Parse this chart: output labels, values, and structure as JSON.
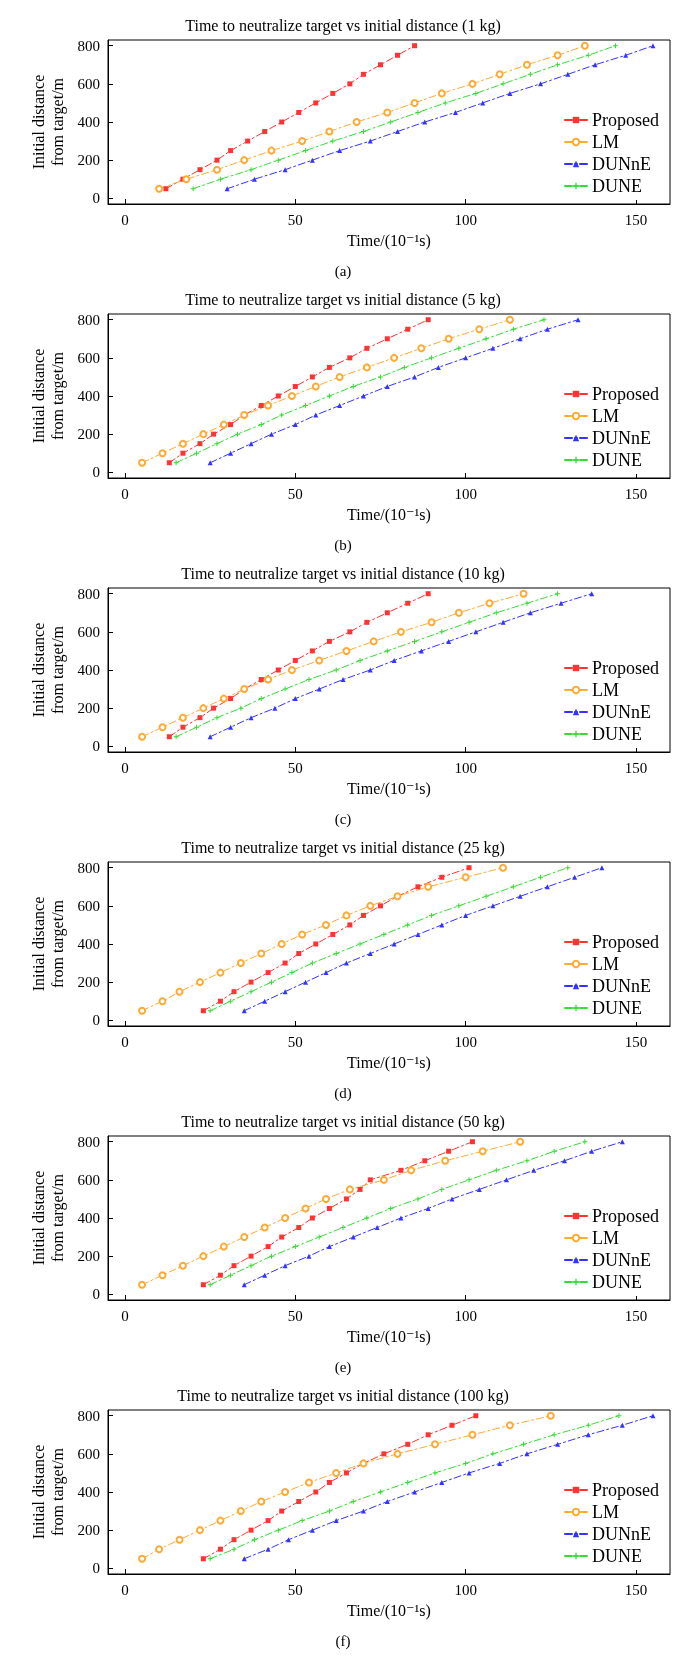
{
  "chart_data": [
    {
      "type": "line",
      "title": "Time to neutralize target vs initial distance (1 kg)",
      "xlabel": "Time/(10⁻¹s)",
      "ylabel": "Initial distance\nfrom target/m",
      "annotations": [
        "(a)"
      ],
      "xlim": [
        -5,
        160
      ],
      "xticks": [
        0,
        50,
        100,
        150
      ],
      "ylim": [
        -30,
        830
      ],
      "yticks": [
        0,
        200,
        400,
        600,
        800
      ],
      "grid": false,
      "legend": "bottom right",
      "line_style": "dashed",
      "series": [
        {
          "name": "Proposed",
          "color": "#ff3333",
          "marker": "square",
          "x": [
            12,
            17,
            22,
            27,
            31,
            36,
            41,
            46,
            51,
            56,
            61,
            66,
            70,
            75,
            80,
            85
          ],
          "values": [
            50,
            100,
            150,
            200,
            250,
            300,
            350,
            400,
            450,
            500,
            550,
            600,
            650,
            700,
            750,
            800
          ]
        },
        {
          "name": "LM",
          "color": "#ffaa33",
          "marker": "circle",
          "x": [
            10,
            18,
            27,
            35,
            43,
            52,
            60,
            68,
            77,
            85,
            93,
            102,
            110,
            118,
            127,
            135
          ],
          "values": [
            50,
            100,
            150,
            200,
            250,
            300,
            350,
            400,
            450,
            500,
            550,
            600,
            650,
            700,
            750,
            800
          ]
        },
        {
          "name": "DUNnE",
          "color": "#3333ff",
          "marker": "triangle",
          "x": [
            30,
            38,
            47,
            55,
            63,
            72,
            80,
            88,
            97,
            105,
            113,
            122,
            130,
            138,
            147,
            155
          ],
          "values": [
            50,
            100,
            150,
            200,
            250,
            300,
            350,
            400,
            450,
            500,
            550,
            600,
            650,
            700,
            750,
            800
          ]
        },
        {
          "name": "DUNE",
          "color": "#33dd33",
          "marker": "cross",
          "x": [
            20,
            28,
            37,
            45,
            53,
            61,
            70,
            78,
            86,
            94,
            103,
            111,
            119,
            127,
            136,
            144
          ],
          "values": [
            50,
            100,
            150,
            200,
            250,
            300,
            350,
            400,
            450,
            500,
            550,
            600,
            650,
            700,
            750,
            800
          ]
        }
      ]
    },
    {
      "type": "line",
      "title": "Time to neutralize target vs initial distance (5 kg)",
      "xlabel": "Time/(10⁻¹s)",
      "ylabel": "Initial distance\nfrom target/m",
      "annotations": [
        "(b)"
      ],
      "xlim": [
        -5,
        160
      ],
      "xticks": [
        0,
        50,
        100,
        150
      ],
      "ylim": [
        -30,
        830
      ],
      "yticks": [
        0,
        200,
        400,
        600,
        800
      ],
      "grid": false,
      "legend": "bottom right",
      "line_style": "dashed",
      "series": [
        {
          "name": "Proposed",
          "color": "#ff3333",
          "marker": "square",
          "x": [
            13,
            17,
            22,
            26,
            31,
            35,
            40,
            45,
            50,
            55,
            60,
            66,
            71,
            77,
            83,
            89
          ],
          "values": [
            50,
            100,
            150,
            200,
            250,
            300,
            350,
            400,
            450,
            500,
            550,
            600,
            650,
            700,
            750,
            800
          ]
        },
        {
          "name": "LM",
          "color": "#ffaa33",
          "marker": "circle",
          "x": [
            5,
            11,
            17,
            23,
            29,
            35,
            42,
            49,
            56,
            63,
            71,
            79,
            87,
            95,
            104,
            113
          ],
          "values": [
            50,
            100,
            150,
            200,
            250,
            300,
            350,
            400,
            450,
            500,
            550,
            600,
            650,
            700,
            750,
            800
          ]
        },
        {
          "name": "DUNnE",
          "color": "#3333ff",
          "marker": "triangle",
          "x": [
            25,
            31,
            37,
            43,
            50,
            56,
            63,
            70,
            77,
            85,
            92,
            100,
            108,
            116,
            124,
            133
          ],
          "values": [
            50,
            100,
            150,
            200,
            250,
            300,
            350,
            400,
            450,
            500,
            550,
            600,
            650,
            700,
            750,
            800
          ]
        },
        {
          "name": "DUNE",
          "color": "#33dd33",
          "marker": "cross",
          "x": [
            15,
            21,
            27,
            33,
            40,
            46,
            53,
            60,
            67,
            75,
            82,
            90,
            98,
            106,
            114,
            123
          ],
          "values": [
            50,
            100,
            150,
            200,
            250,
            300,
            350,
            400,
            450,
            500,
            550,
            600,
            650,
            700,
            750,
            800
          ]
        }
      ]
    },
    {
      "type": "line",
      "title": "Time to neutralize target vs initial distance (10 kg)",
      "xlabel": "Time/(10⁻¹s)",
      "ylabel": "Initial distance\nfrom target/m",
      "annotations": [
        "(c)"
      ],
      "xlim": [
        -5,
        160
      ],
      "xticks": [
        0,
        50,
        100,
        150
      ],
      "ylim": [
        -30,
        830
      ],
      "yticks": [
        0,
        200,
        400,
        600,
        800
      ],
      "grid": false,
      "legend": "bottom right",
      "line_style": "dashed",
      "series": [
        {
          "name": "Proposed",
          "color": "#ff3333",
          "marker": "square",
          "x": [
            13,
            17,
            22,
            26,
            31,
            35,
            40,
            45,
            50,
            55,
            60,
            66,
            71,
            77,
            83,
            89
          ],
          "values": [
            50,
            100,
            150,
            200,
            250,
            300,
            350,
            400,
            450,
            500,
            550,
            600,
            650,
            700,
            750,
            800
          ]
        },
        {
          "name": "LM",
          "color": "#ffaa33",
          "marker": "circle",
          "x": [
            5,
            11,
            17,
            23,
            29,
            35,
            42,
            49,
            57,
            65,
            73,
            81,
            90,
            98,
            107,
            117
          ],
          "values": [
            50,
            100,
            150,
            200,
            250,
            300,
            350,
            400,
            450,
            500,
            550,
            600,
            650,
            700,
            750,
            800
          ]
        },
        {
          "name": "DUNnE",
          "color": "#3333ff",
          "marker": "triangle",
          "x": [
            25,
            31,
            37,
            44,
            50,
            57,
            64,
            72,
            79,
            87,
            95,
            103,
            111,
            119,
            128,
            137
          ],
          "values": [
            50,
            100,
            150,
            200,
            250,
            300,
            350,
            400,
            450,
            500,
            550,
            600,
            650,
            700,
            750,
            800
          ]
        },
        {
          "name": "DUNE",
          "color": "#33dd33",
          "marker": "cross",
          "x": [
            15,
            21,
            27,
            34,
            40,
            47,
            54,
            62,
            69,
            77,
            85,
            93,
            101,
            109,
            118,
            127
          ],
          "values": [
            50,
            100,
            150,
            200,
            250,
            300,
            350,
            400,
            450,
            500,
            550,
            600,
            650,
            700,
            750,
            800
          ]
        }
      ]
    },
    {
      "type": "line",
      "title": "Time to neutralize target vs initial distance (25 kg)",
      "xlabel": "Time/(10⁻¹s)",
      "ylabel": "Initial distance\nfrom target/m",
      "annotations": [
        "(d)"
      ],
      "xlim": [
        -5,
        160
      ],
      "xticks": [
        0,
        50,
        100,
        150
      ],
      "ylim": [
        -30,
        830
      ],
      "yticks": [
        0,
        200,
        400,
        600,
        800
      ],
      "grid": false,
      "legend": "bottom right",
      "line_style": "dashed",
      "series": [
        {
          "name": "Proposed",
          "color": "#ff3333",
          "marker": "square",
          "x": [
            23,
            28,
            32,
            37,
            42,
            47,
            51,
            56,
            61,
            66,
            70,
            75,
            80,
            86,
            93,
            101
          ],
          "values": [
            50,
            100,
            150,
            200,
            250,
            300,
            350,
            400,
            450,
            500,
            550,
            600,
            650,
            700,
            750,
            800
          ]
        },
        {
          "name": "LM",
          "color": "#ffaa33",
          "marker": "circle",
          "x": [
            5,
            11,
            16,
            22,
            28,
            34,
            40,
            46,
            52,
            59,
            65,
            72,
            80,
            89,
            100,
            111
          ],
          "values": [
            50,
            100,
            150,
            200,
            250,
            300,
            350,
            400,
            450,
            500,
            550,
            600,
            650,
            700,
            750,
            800
          ]
        },
        {
          "name": "DUNnE",
          "color": "#3333ff",
          "marker": "triangle",
          "x": [
            35,
            41,
            47,
            53,
            59,
            65,
            72,
            79,
            86,
            93,
            100,
            108,
            116,
            124,
            132,
            140
          ],
          "values": [
            50,
            100,
            150,
            200,
            250,
            300,
            350,
            400,
            450,
            500,
            550,
            600,
            650,
            700,
            750,
            800
          ]
        },
        {
          "name": "DUNE",
          "color": "#33dd33",
          "marker": "cross",
          "x": [
            25,
            31,
            37,
            43,
            49,
            55,
            62,
            69,
            76,
            83,
            90,
            98,
            106,
            114,
            122,
            130
          ],
          "values": [
            50,
            100,
            150,
            200,
            250,
            300,
            350,
            400,
            450,
            500,
            550,
            600,
            650,
            700,
            750,
            800
          ]
        }
      ]
    },
    {
      "type": "line",
      "title": "Time to neutralize target vs initial distance (50 kg)",
      "xlabel": "Time/(10⁻¹s)",
      "ylabel": "Initial distance\nfrom target/m",
      "annotations": [
        "(e)"
      ],
      "xlim": [
        -5,
        160
      ],
      "xticks": [
        0,
        50,
        100,
        150
      ],
      "ylim": [
        -30,
        830
      ],
      "yticks": [
        0,
        200,
        400,
        600,
        800
      ],
      "grid": false,
      "legend": "bottom right",
      "line_style": "dashed",
      "series": [
        {
          "name": "Proposed",
          "color": "#ff3333",
          "marker": "square",
          "x": [
            23,
            28,
            32,
            37,
            42,
            46,
            51,
            55,
            60,
            65,
            69,
            72,
            81,
            88,
            95,
            102
          ],
          "values": [
            50,
            100,
            150,
            200,
            250,
            300,
            350,
            400,
            450,
            500,
            550,
            600,
            650,
            700,
            750,
            800
          ]
        },
        {
          "name": "LM",
          "color": "#ffaa33",
          "marker": "circle",
          "x": [
            5,
            11,
            17,
            23,
            29,
            35,
            41,
            47,
            53,
            59,
            66,
            76,
            84,
            94,
            105,
            116
          ],
          "values": [
            50,
            100,
            150,
            200,
            250,
            300,
            350,
            400,
            450,
            500,
            550,
            600,
            650,
            700,
            750,
            800
          ]
        },
        {
          "name": "DUNnE",
          "color": "#3333ff",
          "marker": "triangle",
          "x": [
            35,
            41,
            47,
            54,
            60,
            67,
            74,
            81,
            89,
            96,
            104,
            112,
            120,
            129,
            137,
            146
          ],
          "values": [
            50,
            100,
            150,
            200,
            250,
            300,
            350,
            400,
            450,
            500,
            550,
            600,
            650,
            700,
            750,
            800
          ]
        },
        {
          "name": "DUNE",
          "color": "#33dd33",
          "marker": "cross",
          "x": [
            25,
            31,
            37,
            43,
            50,
            57,
            64,
            71,
            78,
            86,
            93,
            101,
            109,
            118,
            126,
            135
          ],
          "values": [
            50,
            100,
            150,
            200,
            250,
            300,
            350,
            400,
            450,
            500,
            550,
            600,
            650,
            700,
            750,
            800
          ]
        }
      ]
    },
    {
      "type": "line",
      "title": "Time to neutralize target vs initial distance (100 kg)",
      "xlabel": "Time/(10⁻¹s)",
      "ylabel": "Initial distance\nfrom target/m",
      "annotations": [
        "(f)"
      ],
      "xlim": [
        -5,
        160
      ],
      "xticks": [
        0,
        50,
        100,
        150
      ],
      "ylim": [
        -30,
        830
      ],
      "yticks": [
        0,
        200,
        400,
        600,
        800
      ],
      "grid": false,
      "legend": "bottom right",
      "line_style": "dashed",
      "series": [
        {
          "name": "Proposed",
          "color": "#ff3333",
          "marker": "square",
          "x": [
            23,
            28,
            32,
            37,
            42,
            46,
            51,
            56,
            60,
            65,
            70,
            76,
            83,
            89,
            96,
            103
          ],
          "values": [
            50,
            100,
            150,
            200,
            250,
            300,
            350,
            400,
            450,
            500,
            550,
            600,
            650,
            700,
            750,
            800
          ]
        },
        {
          "name": "LM",
          "color": "#ffaa33",
          "marker": "circle",
          "x": [
            5,
            10,
            16,
            22,
            28,
            34,
            40,
            47,
            54,
            62,
            70,
            80,
            91,
            102,
            113,
            125
          ],
          "values": [
            50,
            100,
            150,
            200,
            250,
            300,
            350,
            400,
            450,
            500,
            550,
            600,
            650,
            700,
            750,
            800
          ]
        },
        {
          "name": "DUNnE",
          "color": "#3333ff",
          "marker": "triangle",
          "x": [
            35,
            42,
            48,
            55,
            62,
            70,
            77,
            85,
            93,
            101,
            110,
            118,
            127,
            136,
            146,
            155
          ],
          "values": [
            50,
            100,
            150,
            200,
            250,
            300,
            350,
            400,
            450,
            500,
            550,
            600,
            650,
            700,
            750,
            800
          ]
        },
        {
          "name": "DUNE",
          "color": "#33dd33",
          "marker": "cross",
          "x": [
            25,
            32,
            38,
            45,
            52,
            60,
            67,
            75,
            83,
            91,
            100,
            108,
            117,
            126,
            136,
            145
          ],
          "values": [
            50,
            100,
            150,
            200,
            250,
            300,
            350,
            400,
            450,
            500,
            550,
            600,
            650,
            700,
            750,
            800
          ]
        }
      ]
    }
  ]
}
